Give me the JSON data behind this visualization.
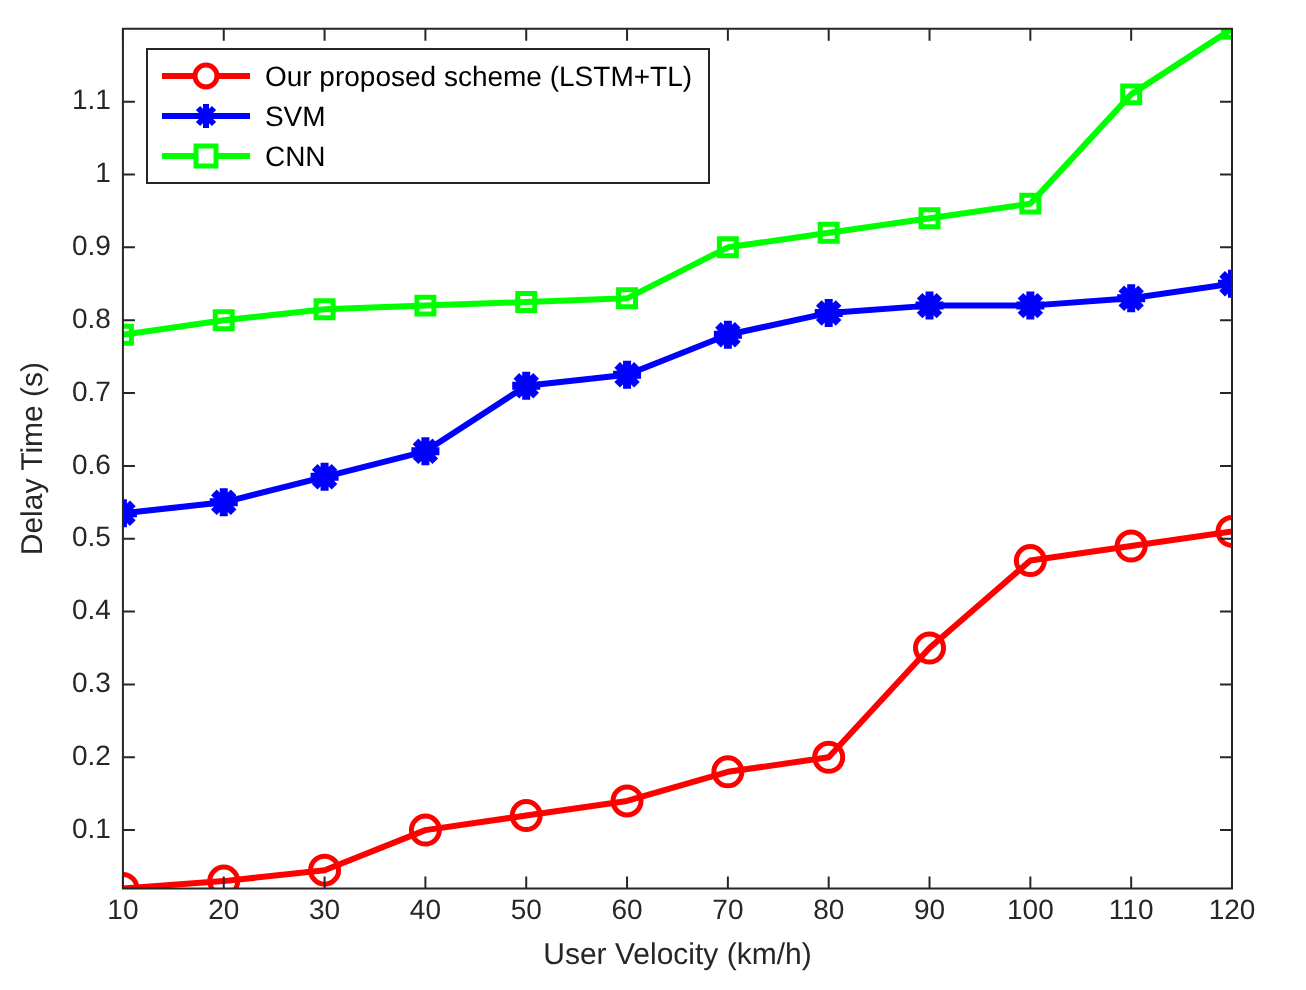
{
  "chart_data": {
    "type": "line",
    "xlabel": "User Velocity (km/h)",
    "ylabel": "Delay Time (s)",
    "x": [
      10,
      20,
      30,
      40,
      50,
      60,
      70,
      80,
      90,
      100,
      110,
      120
    ],
    "xlim": [
      10,
      120
    ],
    "xticks": [
      10,
      20,
      30,
      40,
      50,
      60,
      70,
      80,
      90,
      100,
      110,
      120
    ],
    "ylim": [
      0.02,
      1.2
    ],
    "yticks": [
      0.1,
      0.2,
      0.3,
      0.4,
      0.5,
      0.6,
      0.7,
      0.8,
      0.9,
      1,
      1.1
    ],
    "legend": "top left",
    "line_style": "solid",
    "series": [
      {
        "name": "Our proposed scheme (LSTM+TL)",
        "color": "#ff0000",
        "marker": "circle",
        "values": [
          0.02,
          0.03,
          0.045,
          0.1,
          0.12,
          0.14,
          0.18,
          0.2,
          0.35,
          0.47,
          0.49,
          0.51
        ]
      },
      {
        "name": "SVM",
        "color": "#0000ff",
        "marker": "cross",
        "values": [
          0.535,
          0.55,
          0.585,
          0.62,
          0.71,
          0.725,
          0.78,
          0.81,
          0.82,
          0.82,
          0.83,
          0.85
        ]
      },
      {
        "name": "CNN",
        "color": "#00ff00",
        "marker": "square",
        "values": [
          0.78,
          0.8,
          0.815,
          0.82,
          0.825,
          0.83,
          0.9,
          0.92,
          0.94,
          0.96,
          1.11,
          1.2
        ]
      }
    ]
  }
}
